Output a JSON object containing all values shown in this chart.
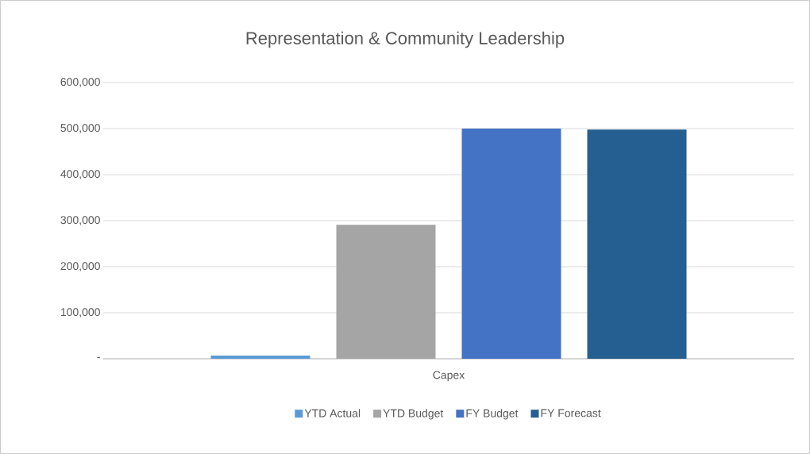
{
  "chart_data": {
    "type": "bar",
    "title": "Representation & Community Leadership",
    "categories": [
      "Capex"
    ],
    "series": [
      {
        "name": "YTD Actual",
        "color": "#5b9bd5",
        "values": [
          7000
        ]
      },
      {
        "name": "YTD Budget",
        "color": "#a5a5a5",
        "values": [
          291000
        ]
      },
      {
        "name": "FY Budget",
        "color": "#4472c4",
        "values": [
          500000
        ]
      },
      {
        "name": "FY Forecast",
        "color": "#255e91",
        "values": [
          498000
        ]
      }
    ],
    "ylim": [
      0,
      600000
    ],
    "yticks": [
      {
        "value": 0,
        "label": "-"
      },
      {
        "value": 100000,
        "label": "100,000"
      },
      {
        "value": 200000,
        "label": "200,000"
      },
      {
        "value": 300000,
        "label": "300,000"
      },
      {
        "value": 400000,
        "label": "400,000"
      },
      {
        "value": 500000,
        "label": "500,000"
      },
      {
        "value": 600000,
        "label": "600,000"
      }
    ],
    "grid": "y",
    "legend": "bottom"
  }
}
